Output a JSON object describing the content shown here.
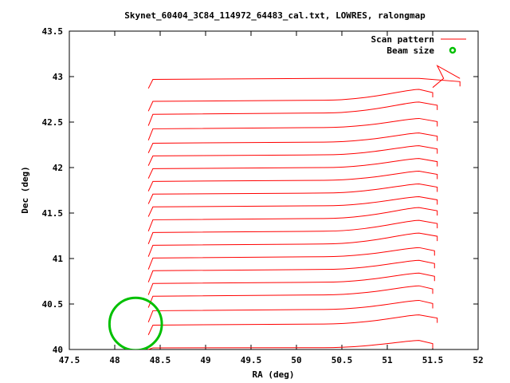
{
  "chart_data": {
    "type": "line",
    "title": "Skynet_60404_3C84_114972_64483_cal.txt, LOWRES, ralongmap",
    "xlabel": "RA (deg)",
    "ylabel": "Dec (deg)",
    "xlim": [
      47.5,
      52
    ],
    "ylim": [
      40,
      43.5
    ],
    "x_ticks": [
      "47.5",
      "48",
      "48.5",
      "49",
      "49.5",
      "50",
      "50.5",
      "51",
      "51.5",
      "52"
    ],
    "y_ticks": [
      "40",
      "40.5",
      "41",
      "41.5",
      "42",
      "42.5",
      "43",
      "43.5"
    ],
    "grid": false,
    "legend_position": "top-right",
    "series": [
      {
        "name": "Scan pattern",
        "color": "#ff0000",
        "style": "line",
        "scan_rows": [
          {
            "dec_left": 40.0,
            "dec_right": 40.02,
            "bulge": 0.08,
            "ra_right": 51.5
          },
          {
            "dec_left": 40.16,
            "dec_right": 40.28,
            "bulge": 0.1,
            "ra_right": 51.55
          },
          {
            "dec_left": 40.3,
            "dec_right": 40.44,
            "bulge": 0.1,
            "ra_right": 51.5
          },
          {
            "dec_left": 40.46,
            "dec_right": 40.6,
            "bulge": 0.1,
            "ra_right": 51.5
          },
          {
            "dec_left": 40.6,
            "dec_right": 40.74,
            "bulge": 0.1,
            "ra_right": 51.52
          },
          {
            "dec_left": 40.74,
            "dec_right": 40.88,
            "bulge": 0.1,
            "ra_right": 51.52
          },
          {
            "dec_left": 40.88,
            "dec_right": 41.02,
            "bulge": 0.1,
            "ra_right": 51.52
          },
          {
            "dec_left": 41.02,
            "dec_right": 41.16,
            "bulge": 0.12,
            "ra_right": 51.55
          },
          {
            "dec_left": 41.16,
            "dec_right": 41.3,
            "bulge": 0.12,
            "ra_right": 51.55
          },
          {
            "dec_left": 41.3,
            "dec_right": 41.44,
            "bulge": 0.12,
            "ra_right": 51.55
          },
          {
            "dec_left": 41.46,
            "dec_right": 41.58,
            "bulge": 0.1,
            "ra_right": 51.55
          },
          {
            "dec_left": 41.6,
            "dec_right": 41.72,
            "bulge": 0.1,
            "ra_right": 51.55
          },
          {
            "dec_left": 41.74,
            "dec_right": 41.86,
            "bulge": 0.1,
            "ra_right": 51.55
          },
          {
            "dec_left": 41.88,
            "dec_right": 42.0,
            "bulge": 0.1,
            "ra_right": 51.55
          },
          {
            "dec_left": 42.02,
            "dec_right": 42.14,
            "bulge": 0.1,
            "ra_right": 51.55
          },
          {
            "dec_left": 42.16,
            "dec_right": 42.28,
            "bulge": 0.1,
            "ra_right": 51.55
          },
          {
            "dec_left": 42.3,
            "dec_right": 42.44,
            "bulge": 0.1,
            "ra_right": 51.55
          },
          {
            "dec_left": 42.46,
            "dec_right": 42.6,
            "bulge": 0.12,
            "ra_right": 51.55
          },
          {
            "dec_left": 42.62,
            "dec_right": 42.74,
            "bulge": 0.12,
            "ra_right": 51.5
          },
          {
            "dec_left": 42.87,
            "dec_right": 42.98,
            "bulge": 0.0,
            "ra_right": 51.8
          }
        ],
        "ra_left": 48.37
      },
      {
        "name": "Beam size",
        "color": "#00c000",
        "style": "circle",
        "center_ra": 48.23,
        "center_dec": 40.28,
        "radius_deg": 0.32
      }
    ]
  }
}
